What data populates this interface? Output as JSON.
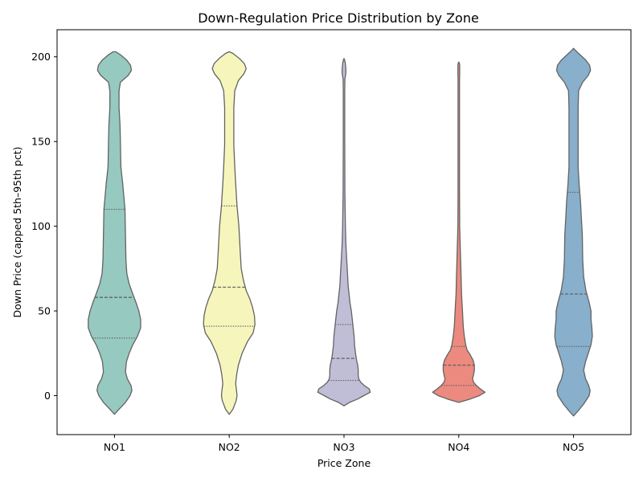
{
  "chart_data": {
    "type": "violin",
    "title": "Down-Regulation Price Distribution by Zone",
    "xlabel": "Price Zone",
    "ylabel": "Down Price (capped 5th–95th pct)",
    "ylim": [
      -23,
      216
    ],
    "yticks": [
      0,
      50,
      100,
      150,
      200
    ],
    "categories": [
      "NO1",
      "NO2",
      "NO3",
      "NO4",
      "NO5"
    ],
    "grid": false,
    "edge_color": "#636363",
    "series": [
      {
        "category": "NO1",
        "color": "#96c9bf",
        "quartiles": [
          34,
          58,
          110
        ],
        "profile": [
          [
            -11,
            0
          ],
          [
            -8,
            10
          ],
          [
            -4,
            24
          ],
          [
            0,
            34
          ],
          [
            3,
            38
          ],
          [
            6,
            36
          ],
          [
            10,
            28
          ],
          [
            14,
            24
          ],
          [
            20,
            26
          ],
          [
            25,
            32
          ],
          [
            30,
            40
          ],
          [
            35,
            50
          ],
          [
            40,
            57
          ],
          [
            45,
            57
          ],
          [
            50,
            53
          ],
          [
            55,
            47
          ],
          [
            60,
            40
          ],
          [
            66,
            32
          ],
          [
            72,
            27
          ],
          [
            80,
            25
          ],
          [
            95,
            24
          ],
          [
            110,
            23
          ],
          [
            125,
            18
          ],
          [
            135,
            14
          ],
          [
            150,
            13
          ],
          [
            160,
            12
          ],
          [
            170,
            10
          ],
          [
            180,
            10
          ],
          [
            185,
            13
          ],
          [
            189,
            30
          ],
          [
            192,
            37
          ],
          [
            195,
            35
          ],
          [
            198,
            27
          ],
          [
            201,
            14
          ],
          [
            203,
            3
          ]
        ]
      },
      {
        "category": "NO2",
        "color": "#f6f6bc",
        "quartiles": [
          41,
          64,
          112
        ],
        "profile": [
          [
            -11,
            0
          ],
          [
            -8,
            8
          ],
          [
            -3,
            15
          ],
          [
            0,
            17
          ],
          [
            3,
            16
          ],
          [
            7,
            14
          ],
          [
            12,
            16
          ],
          [
            18,
            20
          ],
          [
            25,
            28
          ],
          [
            32,
            40
          ],
          [
            37,
            52
          ],
          [
            42,
            56
          ],
          [
            47,
            55
          ],
          [
            52,
            51
          ],
          [
            57,
            45
          ],
          [
            62,
            37
          ],
          [
            68,
            31
          ],
          [
            75,
            26
          ],
          [
            85,
            24
          ],
          [
            100,
            21
          ],
          [
            112,
            17
          ],
          [
            125,
            14
          ],
          [
            135,
            12
          ],
          [
            148,
            10
          ],
          [
            158,
            10
          ],
          [
            170,
            10
          ],
          [
            180,
            12
          ],
          [
            186,
            20
          ],
          [
            190,
            32
          ],
          [
            193,
            37
          ],
          [
            196,
            33
          ],
          [
            199,
            22
          ],
          [
            202,
            8
          ],
          [
            203,
            0
          ]
        ]
      },
      {
        "category": "NO3",
        "color": "#c0bdd7",
        "quartiles": [
          9,
          22,
          42
        ],
        "profile": [
          [
            -6,
            0
          ],
          [
            -4,
            12
          ],
          [
            -2,
            30
          ],
          [
            0,
            43
          ],
          [
            2,
            57
          ],
          [
            4,
            55
          ],
          [
            6,
            44
          ],
          [
            8,
            36
          ],
          [
            10,
            32
          ],
          [
            12,
            31
          ],
          [
            15,
            31
          ],
          [
            18,
            30
          ],
          [
            20,
            28
          ],
          [
            25,
            25
          ],
          [
            30,
            23
          ],
          [
            35,
            22
          ],
          [
            40,
            20
          ],
          [
            45,
            18
          ],
          [
            50,
            16
          ],
          [
            55,
            13
          ],
          [
            60,
            11
          ],
          [
            65,
            9
          ],
          [
            70,
            8
          ],
          [
            80,
            6
          ],
          [
            90,
            4
          ],
          [
            100,
            3
          ],
          [
            120,
            2
          ],
          [
            150,
            1.5
          ],
          [
            180,
            1.5
          ],
          [
            187,
            2
          ],
          [
            190,
            4
          ],
          [
            193,
            4
          ],
          [
            196,
            3
          ],
          [
            198,
            1.5
          ],
          [
            199,
            0
          ]
        ]
      },
      {
        "category": "NO4",
        "color": "#ec8a7f",
        "quartiles": [
          6,
          18,
          29
        ],
        "profile": [
          [
            -4,
            0
          ],
          [
            -2,
            25
          ],
          [
            0,
            45
          ],
          [
            2,
            57
          ],
          [
            4,
            47
          ],
          [
            6,
            38
          ],
          [
            8,
            32
          ],
          [
            10,
            30
          ],
          [
            12,
            32
          ],
          [
            15,
            34
          ],
          [
            18,
            34
          ],
          [
            21,
            31
          ],
          [
            24,
            25
          ],
          [
            27,
            18
          ],
          [
            30,
            15
          ],
          [
            35,
            12
          ],
          [
            40,
            10
          ],
          [
            45,
            9
          ],
          [
            50,
            8
          ],
          [
            55,
            7
          ],
          [
            60,
            6
          ],
          [
            70,
            5
          ],
          [
            80,
            4
          ],
          [
            90,
            3
          ],
          [
            95,
            2.5
          ],
          [
            100,
            2
          ],
          [
            120,
            1.5
          ],
          [
            160,
            1.5
          ],
          [
            186,
            1.5
          ],
          [
            190,
            2
          ],
          [
            194,
            2
          ],
          [
            196,
            1.5
          ],
          [
            197,
            0
          ]
        ]
      },
      {
        "category": "NO5",
        "color": "#88afcb",
        "quartiles": [
          29,
          60,
          120
        ],
        "profile": [
          [
            -12,
            0
          ],
          [
            -9,
            10
          ],
          [
            -5,
            22
          ],
          [
            0,
            34
          ],
          [
            3,
            36
          ],
          [
            6,
            33
          ],
          [
            10,
            26
          ],
          [
            15,
            22
          ],
          [
            20,
            26
          ],
          [
            25,
            32
          ],
          [
            30,
            38
          ],
          [
            35,
            41
          ],
          [
            40,
            40
          ],
          [
            45,
            38
          ],
          [
            50,
            38
          ],
          [
            55,
            34
          ],
          [
            62,
            27
          ],
          [
            70,
            22
          ],
          [
            80,
            20
          ],
          [
            95,
            19
          ],
          [
            105,
            17
          ],
          [
            115,
            15
          ],
          [
            125,
            12
          ],
          [
            135,
            10
          ],
          [
            150,
            10
          ],
          [
            163,
            10
          ],
          [
            170,
            10
          ],
          [
            180,
            11
          ],
          [
            185,
            20
          ],
          [
            189,
            32
          ],
          [
            192,
            37
          ],
          [
            195,
            35
          ],
          [
            198,
            27
          ],
          [
            201,
            15
          ],
          [
            203,
            7
          ],
          [
            205,
            0
          ]
        ]
      }
    ]
  }
}
